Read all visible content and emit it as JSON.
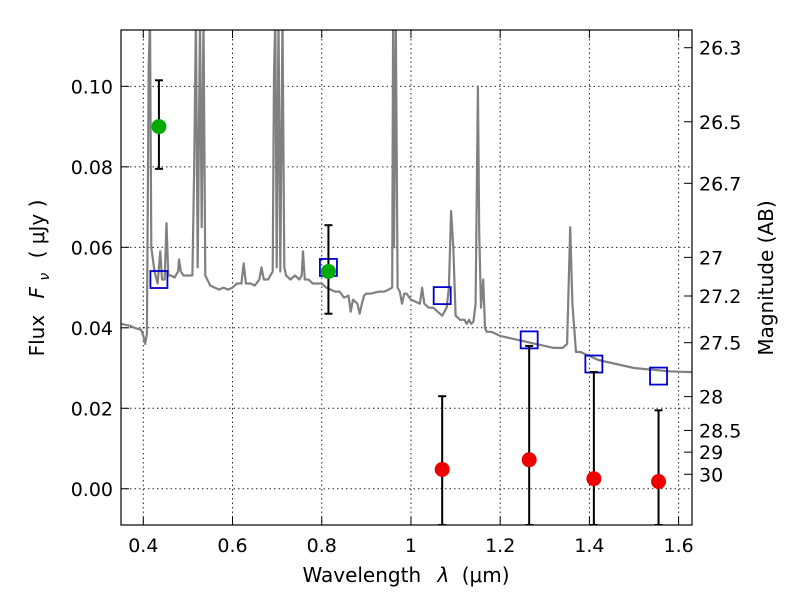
{
  "chart_data": {
    "type": "scatter",
    "title": "",
    "xlabel": "Wavelength",
    "xlabel_symbol": "λ",
    "xlabel_unit": "(μm)",
    "ylabel": "Flux",
    "ylabel_symbol": "F",
    "ylabel_subscript": "ν",
    "ylabel_unit": "( μJy )",
    "y2label": "Magnitude (AB)",
    "xlim": [
      0.35,
      1.63
    ],
    "ylim": [
      -0.009,
      0.114
    ],
    "grid": true,
    "x_ticks": [
      {
        "value": 0.4,
        "label": "0.4"
      },
      {
        "value": 0.6,
        "label": "0.6"
      },
      {
        "value": 0.8,
        "label": "0.8"
      },
      {
        "value": 1.0,
        "label": "1"
      },
      {
        "value": 1.2,
        "label": "1.2"
      },
      {
        "value": 1.4,
        "label": "1.4"
      },
      {
        "value": 1.6,
        "label": "1.6"
      }
    ],
    "y_ticks": [
      {
        "value": 0.0,
        "label": "0.00"
      },
      {
        "value": 0.02,
        "label": "0.02"
      },
      {
        "value": 0.04,
        "label": "0.04"
      },
      {
        "value": 0.06,
        "label": "0.06"
      },
      {
        "value": 0.08,
        "label": "0.08"
      },
      {
        "value": 0.1,
        "label": "0.10"
      }
    ],
    "y2_ticks": [
      {
        "flux": 0.1096,
        "label": "26.3"
      },
      {
        "flux": 0.0912,
        "label": "26.5"
      },
      {
        "flux": 0.0759,
        "label": "26.7"
      },
      {
        "flux": 0.0575,
        "label": "27"
      },
      {
        "flux": 0.0479,
        "label": "27.2"
      },
      {
        "flux": 0.0363,
        "label": "27.5"
      },
      {
        "flux": 0.0229,
        "label": "28"
      },
      {
        "flux": 0.0145,
        "label": "28.5"
      },
      {
        "flux": 0.0091,
        "label": "29"
      },
      {
        "flux": 0.0036,
        "label": "30"
      }
    ],
    "series": [
      {
        "kind": "line",
        "color": "#808080",
        "points": [
          [
            0.35,
            0.041
          ],
          [
            0.37,
            0.0405
          ],
          [
            0.38,
            0.04
          ],
          [
            0.395,
            0.0395
          ],
          [
            0.4,
            0.038
          ],
          [
            0.404,
            0.036
          ],
          [
            0.408,
            0.0385
          ],
          [
            0.412,
            0.105
          ],
          [
            0.415,
            0.117
          ],
          [
            0.418,
            0.06
          ],
          [
            0.425,
            0.054
          ],
          [
            0.432,
            0.051
          ],
          [
            0.438,
            0.059
          ],
          [
            0.442,
            0.052
          ],
          [
            0.448,
            0.052
          ],
          [
            0.452,
            0.066
          ],
          [
            0.456,
            0.053
          ],
          [
            0.462,
            0.053
          ],
          [
            0.47,
            0.0525
          ],
          [
            0.478,
            0.054
          ],
          [
            0.48,
            0.057
          ],
          [
            0.484,
            0.054
          ],
          [
            0.49,
            0.053
          ],
          [
            0.5,
            0.053
          ],
          [
            0.506,
            0.053
          ],
          [
            0.51,
            0.053
          ],
          [
            0.514,
            0.08
          ],
          [
            0.518,
            0.117
          ],
          [
            0.522,
            0.055
          ],
          [
            0.527,
            0.117
          ],
          [
            0.531,
            0.065
          ],
          [
            0.535,
            0.117
          ],
          [
            0.539,
            0.053
          ],
          [
            0.55,
            0.0505
          ],
          [
            0.56,
            0.05
          ],
          [
            0.57,
            0.0495
          ],
          [
            0.58,
            0.05
          ],
          [
            0.59,
            0.0495
          ],
          [
            0.6,
            0.05
          ],
          [
            0.61,
            0.051
          ],
          [
            0.62,
            0.051
          ],
          [
            0.625,
            0.056
          ],
          [
            0.63,
            0.051
          ],
          [
            0.64,
            0.051
          ],
          [
            0.65,
            0.0505
          ],
          [
            0.66,
            0.052
          ],
          [
            0.665,
            0.055
          ],
          [
            0.67,
            0.052
          ],
          [
            0.68,
            0.052
          ],
          [
            0.685,
            0.053
          ],
          [
            0.69,
            0.054
          ],
          [
            0.693,
            0.103
          ],
          [
            0.696,
            0.117
          ],
          [
            0.699,
            0.055
          ],
          [
            0.703,
            0.117
          ],
          [
            0.707,
            0.054
          ],
          [
            0.712,
            0.117
          ],
          [
            0.716,
            0.055
          ],
          [
            0.72,
            0.053
          ],
          [
            0.73,
            0.052
          ],
          [
            0.74,
            0.053
          ],
          [
            0.75,
            0.052
          ],
          [
            0.755,
            0.053
          ],
          [
            0.758,
            0.059
          ],
          [
            0.762,
            0.052
          ],
          [
            0.77,
            0.052
          ],
          [
            0.78,
            0.051
          ],
          [
            0.79,
            0.051
          ],
          [
            0.8,
            0.051
          ],
          [
            0.81,
            0.05
          ],
          [
            0.82,
            0.0495
          ],
          [
            0.83,
            0.049
          ],
          [
            0.84,
            0.049
          ],
          [
            0.85,
            0.0475
          ],
          [
            0.86,
            0.048
          ],
          [
            0.865,
            0.044
          ],
          [
            0.87,
            0.047
          ],
          [
            0.88,
            0.046
          ],
          [
            0.885,
            0.0435
          ],
          [
            0.89,
            0.046
          ],
          [
            0.895,
            0.048
          ],
          [
            0.9,
            0.0485
          ],
          [
            0.91,
            0.0485
          ],
          [
            0.92,
            0.0488
          ],
          [
            0.93,
            0.049
          ],
          [
            0.94,
            0.049
          ],
          [
            0.95,
            0.0495
          ],
          [
            0.958,
            0.05
          ],
          [
            0.96,
            0.117
          ],
          [
            0.962,
            0.06
          ],
          [
            0.966,
            0.117
          ],
          [
            0.97,
            0.05
          ],
          [
            0.975,
            0.049
          ],
          [
            0.98,
            0.046
          ],
          [
            0.985,
            0.0485
          ],
          [
            0.99,
            0.0485
          ],
          [
            1.0,
            0.047
          ],
          [
            1.01,
            0.0465
          ],
          [
            1.02,
            0.046
          ],
          [
            1.025,
            0.05
          ],
          [
            1.03,
            0.046
          ],
          [
            1.04,
            0.045
          ],
          [
            1.05,
            0.045
          ],
          [
            1.06,
            0.044
          ],
          [
            1.07,
            0.043
          ],
          [
            1.075,
            0.044
          ],
          [
            1.08,
            0.045
          ],
          [
            1.085,
            0.05
          ],
          [
            1.09,
            0.069
          ],
          [
            1.095,
            0.06
          ],
          [
            1.1,
            0.043
          ],
          [
            1.11,
            0.042
          ],
          [
            1.12,
            0.042
          ],
          [
            1.125,
            0.041
          ],
          [
            1.13,
            0.042
          ],
          [
            1.135,
            0.041
          ],
          [
            1.14,
            0.0415
          ],
          [
            1.145,
            0.046
          ],
          [
            1.15,
            0.1
          ],
          [
            1.153,
            0.064
          ],
          [
            1.157,
            0.045
          ],
          [
            1.162,
            0.052
          ],
          [
            1.166,
            0.04
          ],
          [
            1.17,
            0.039
          ],
          [
            1.18,
            0.039
          ],
          [
            1.2,
            0.038
          ],
          [
            1.22,
            0.0375
          ],
          [
            1.24,
            0.037
          ],
          [
            1.26,
            0.0365
          ],
          [
            1.28,
            0.036
          ],
          [
            1.3,
            0.0355
          ],
          [
            1.32,
            0.035
          ],
          [
            1.34,
            0.035
          ],
          [
            1.35,
            0.036
          ],
          [
            1.357,
            0.065
          ],
          [
            1.362,
            0.046
          ],
          [
            1.37,
            0.034
          ],
          [
            1.38,
            0.034
          ],
          [
            1.4,
            0.033
          ],
          [
            1.42,
            0.032
          ],
          [
            1.44,
            0.0315
          ],
          [
            1.46,
            0.031
          ],
          [
            1.48,
            0.0305
          ],
          [
            1.5,
            0.03
          ],
          [
            1.52,
            0.0298
          ],
          [
            1.54,
            0.0296
          ],
          [
            1.56,
            0.0294
          ],
          [
            1.58,
            0.0292
          ],
          [
            1.6,
            0.0291
          ],
          [
            1.63,
            0.029
          ]
        ]
      },
      {
        "kind": "open-square",
        "color": "#0000cc",
        "points": [
          [
            0.435,
            0.052
          ],
          [
            0.815,
            0.055
          ],
          [
            1.07,
            0.048
          ],
          [
            1.265,
            0.037
          ],
          [
            1.41,
            0.031
          ],
          [
            1.555,
            0.028
          ]
        ]
      },
      {
        "kind": "filled-circle",
        "color": "#00aa00",
        "points": [
          {
            "x": 0.435,
            "y": 0.09,
            "err_low": 0.0795,
            "err_high": 0.1015
          },
          {
            "x": 0.815,
            "y": 0.054,
            "err_low": 0.0435,
            "err_high": 0.0655
          }
        ]
      },
      {
        "kind": "filled-circle",
        "color": "#ee0000",
        "points": [
          {
            "x": 1.07,
            "y": 0.0048,
            "err_low": -0.009,
            "err_high": 0.023
          },
          {
            "x": 1.265,
            "y": 0.0072,
            "err_low": -0.009,
            "err_high": 0.0355
          },
          {
            "x": 1.41,
            "y": 0.0025,
            "err_low": -0.009,
            "err_high": 0.029
          },
          {
            "x": 1.555,
            "y": 0.0018,
            "err_low": -0.009,
            "err_high": 0.0195
          }
        ]
      }
    ]
  }
}
